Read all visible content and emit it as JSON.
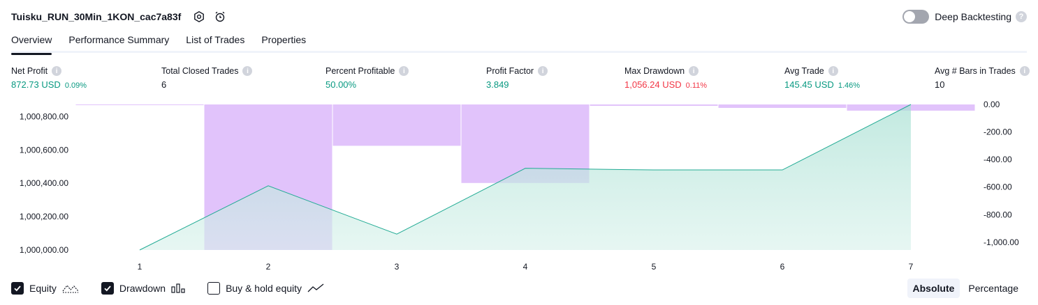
{
  "header": {
    "strategy_name": "Tuisku_RUN_30Min_1KON_cac7a83f",
    "deep_backtesting_label": "Deep Backtesting"
  },
  "tabs": [
    {
      "label": "Overview"
    },
    {
      "label": "Performance Summary"
    },
    {
      "label": "List of Trades"
    },
    {
      "label": "Properties"
    }
  ],
  "stats": {
    "net_profit": {
      "label": "Net Profit",
      "value": "872.73 USD",
      "pct": "0.09%"
    },
    "total_closed_trades": {
      "label": "Total Closed Trades",
      "value": "6"
    },
    "percent_profitable": {
      "label": "Percent Profitable",
      "value": "50.00%"
    },
    "profit_factor": {
      "label": "Profit Factor",
      "value": "3.849"
    },
    "max_drawdown": {
      "label": "Max Drawdown",
      "value": "1,056.24 USD",
      "pct": "0.11%"
    },
    "avg_trade": {
      "label": "Avg Trade",
      "value": "145.45 USD",
      "pct": "1.46%"
    },
    "avg_bars": {
      "label": "Avg # Bars in Trades",
      "value": "10"
    }
  },
  "colors": {
    "positive": "#089981",
    "negative": "#f23645",
    "equity_line": "#22ab94",
    "equity_fill": "#c8ebe3",
    "drawdown_bar": "#e1c3fb"
  },
  "chart_data": {
    "type": "line",
    "x": [
      1,
      2,
      3,
      4,
      5,
      6,
      7
    ],
    "x_tick_labels": [
      "1",
      "2",
      "3",
      "4",
      "5",
      "6",
      "7"
    ],
    "series": [
      {
        "name": "Equity",
        "type": "area",
        "axis": "left",
        "values": [
          1000000.0,
          1000385.0,
          1000095.0,
          1000490.0,
          1000480.0,
          1000480.0,
          1000872.73
        ]
      },
      {
        "name": "Drawdown",
        "type": "bar",
        "axis": "right",
        "values": [
          -4,
          -1056.24,
          -300,
          -570,
          -10,
          -25,
          -45
        ]
      }
    ],
    "left_axis": {
      "ylim": [
        1000000,
        1000872.73
      ],
      "tick_labels": [
        "1,000,000.00",
        "1,000,200.00",
        "1,000,400.00",
        "1,000,600.00",
        "1,000,800.00"
      ],
      "ticks": [
        1000000,
        1000200,
        1000400,
        1000600,
        1000800
      ]
    },
    "right_axis": {
      "ylim": [
        -1056.24,
        0
      ],
      "tick_labels": [
        "0.00",
        "-200.00",
        "-400.00",
        "-600.00",
        "-800.00",
        "-1,000.00"
      ],
      "ticks": [
        0,
        -200,
        -400,
        -600,
        -800,
        -1000
      ]
    },
    "grid": false
  },
  "legend": {
    "equity_label": "Equity",
    "equity_checked": true,
    "drawdown_label": "Drawdown",
    "drawdown_checked": true,
    "buyhold_label": "Buy & hold equity",
    "buyhold_checked": false
  },
  "modes": {
    "absolute_label": "Absolute",
    "percentage_label": "Percentage",
    "active": "Absolute"
  }
}
